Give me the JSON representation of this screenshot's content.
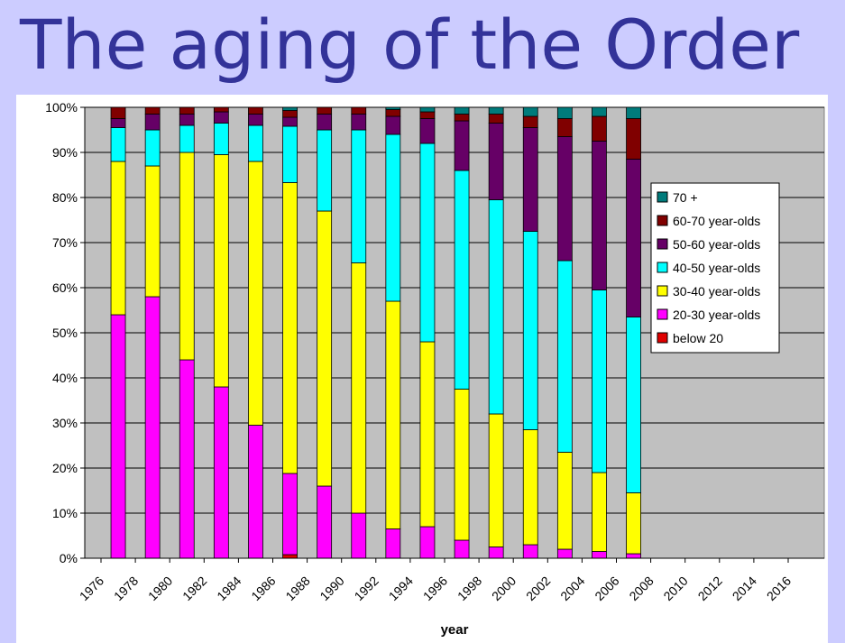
{
  "slide": {
    "title": "The aging of the Order"
  },
  "colors": {
    "70_plus": "#007b7b",
    "60_70": "#800000",
    "50_60": "#660066",
    "40_50": "#00ffff",
    "30_40": "#ffff00",
    "20_30": "#ff00ff",
    "below_20": "#e00000",
    "plot_bg": "#c0c0c0",
    "slide_bg": "#ccccff",
    "title": "#333399"
  },
  "chart_data": {
    "type": "bar",
    "stacked": true,
    "percent": true,
    "xlabel": "year",
    "ylabel": "",
    "ylim": [
      0,
      100
    ],
    "y_ticks": [
      "0%",
      "10%",
      "20%",
      "30%",
      "40%",
      "50%",
      "60%",
      "70%",
      "80%",
      "90%",
      "100%"
    ],
    "x_ticks": [
      "1976",
      "1978",
      "1980",
      "1982",
      "1984",
      "1986",
      "1988",
      "1990",
      "1992",
      "1994",
      "1996",
      "1998",
      "2000",
      "2002",
      "2004",
      "2006",
      "2008",
      "2010",
      "2012",
      "2014",
      "2016"
    ],
    "grid": true,
    "legend_position": "right",
    "legend_order": [
      "70 +",
      "60-70 year-olds",
      "50-60 year-olds",
      "40-50 year-olds",
      "30-40 year-olds",
      "20-30 year-olds",
      "below 20"
    ],
    "categories": [
      "1977",
      "1979",
      "1981",
      "1983",
      "1985",
      "1987",
      "1989",
      "1991",
      "1993",
      "1995",
      "1997",
      "1999",
      "2001",
      "2003",
      "2005",
      "2007"
    ],
    "series": [
      {
        "name": "below 20",
        "color_key": "below_20",
        "values": [
          0,
          0,
          0,
          0,
          0,
          0.8,
          0,
          0,
          0,
          0,
          0,
          0,
          0,
          0,
          0,
          0
        ]
      },
      {
        "name": "20-30 year-olds",
        "color_key": "20_30",
        "values": [
          54,
          58,
          44,
          38,
          29.5,
          18,
          16,
          10,
          6.5,
          7,
          4,
          2.5,
          3,
          2,
          1.5,
          1
        ]
      },
      {
        "name": "30-40 year-olds",
        "color_key": "30_40",
        "values": [
          34,
          29,
          46,
          51.5,
          58.5,
          64.5,
          61,
          55.5,
          50.5,
          41,
          33.5,
          29.5,
          25.5,
          21.5,
          17.5,
          13.5
        ]
      },
      {
        "name": "40-50 year-olds",
        "color_key": "40_50",
        "values": [
          7.5,
          8,
          6,
          7,
          8,
          12.5,
          18,
          29.5,
          37,
          44,
          48.5,
          47.5,
          44,
          42.5,
          40.5,
          39
        ]
      },
      {
        "name": "50-60 year-olds",
        "color_key": "50_60",
        "values": [
          2,
          3.5,
          2.5,
          2.5,
          2.5,
          2,
          3.5,
          3.5,
          4,
          5.5,
          11,
          17,
          23,
          27.5,
          33,
          35
        ]
      },
      {
        "name": "60-70 year-olds",
        "color_key": "60_70",
        "values": [
          2.5,
          1.5,
          1.5,
          1,
          1.5,
          1.5,
          1.5,
          1.5,
          1.5,
          1.5,
          1.5,
          2,
          2.5,
          4,
          5.5,
          9
        ]
      },
      {
        "name": "70 +",
        "color_key": "70_plus",
        "values": [
          0,
          0,
          0,
          0,
          0,
          0.7,
          0,
          0,
          0.5,
          1,
          1.5,
          1.5,
          2,
          2.5,
          2,
          2.5
        ]
      }
    ]
  }
}
